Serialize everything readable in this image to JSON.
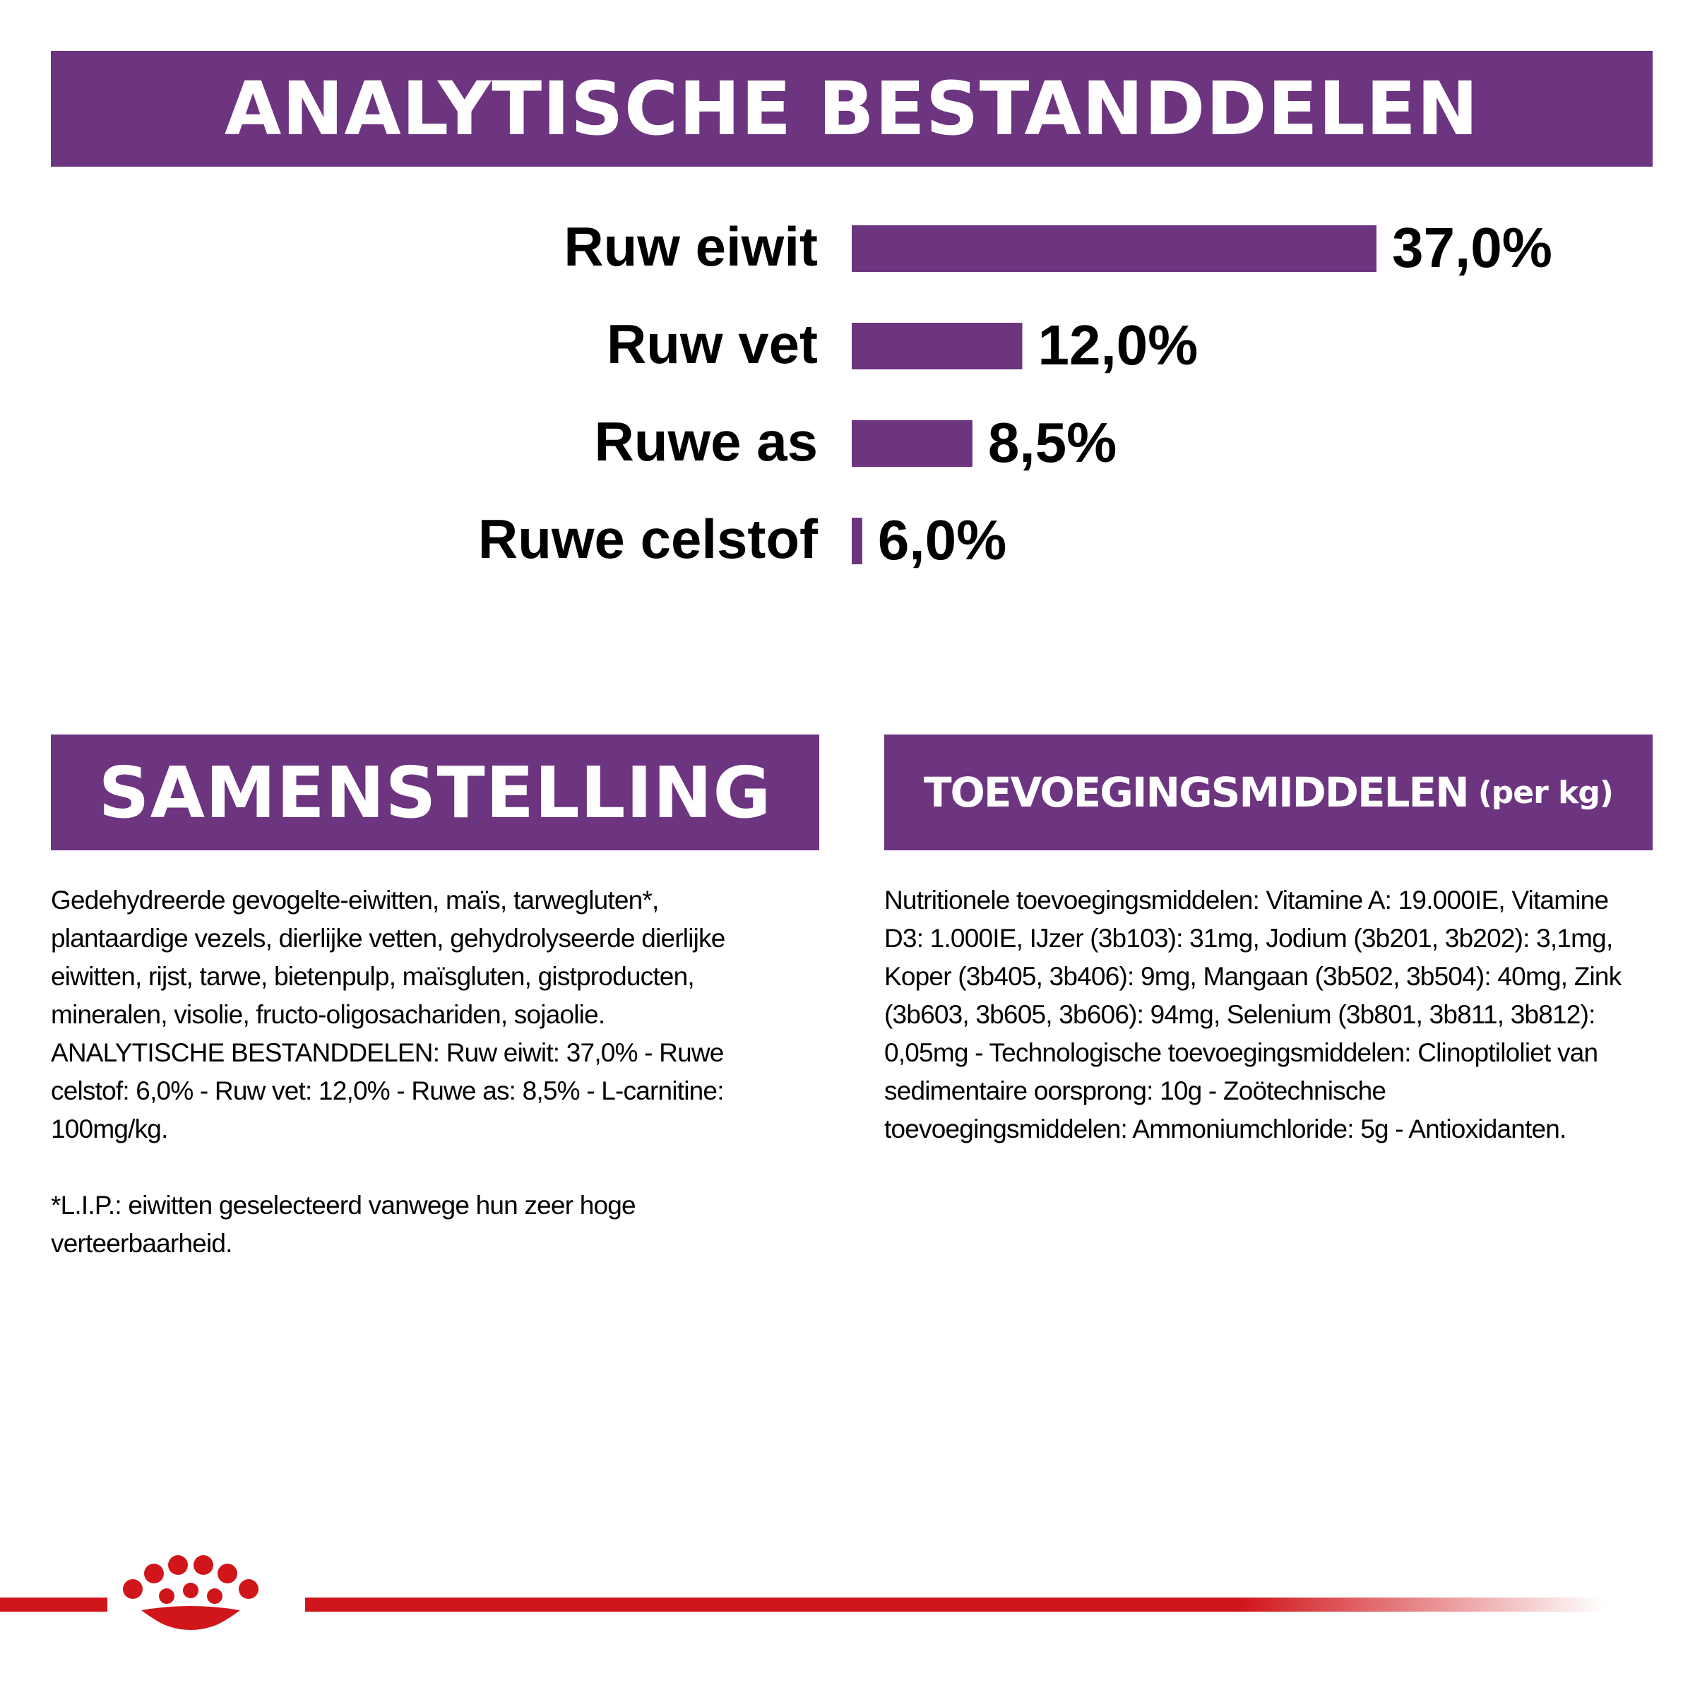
{
  "header": {
    "title": "ANALYTISCHE BESTANDDELEN"
  },
  "chart_data": {
    "type": "bar",
    "orientation": "horizontal",
    "categories": [
      "Ruw eiwit",
      "Ruw vet",
      "Ruwe as",
      "Ruwe celstof"
    ],
    "values": [
      37.0,
      12.0,
      8.5,
      6.0
    ],
    "data_labels": [
      "37,0%",
      "12,0%",
      "8,5%",
      "6,0%"
    ],
    "bar_scale": [
      1.0,
      0.325,
      0.23,
      0.02
    ],
    "color": "#6d3480",
    "grid": false,
    "legend": "none"
  },
  "composition": {
    "title": "SAMENSTELLING",
    "text": "Gedehydreerde gevogelte-eiwitten, maïs, tarwegluten*, plantaardige vezels, dierlijke vetten, gehydrolyseerde dierlijke eiwitten, rijst, tarwe, bietenpulp, maïsgluten, gistproducten, mineralen, visolie, fructo-oligosachariden, sojaolie.",
    "analytic": "ANALYTISCHE BESTANDDELEN: Ruw eiwit: 37,0% - Ruwe celstof: 6,0% - Ruw vet: 12,0% - Ruwe as: 8,5% - L-carnitine: 100mg/kg.",
    "footnote": "*L.I.P.: eiwitten geselecteerd vanwege hun zeer hoge verteerbaarheid."
  },
  "additives": {
    "title": "TOEVOEGINGSMIDDELEN",
    "subtitle": "(per kg)",
    "text": "Nutritionele toevoegingsmiddelen: Vitamine A: 19.000IE, Vitamine D3: 1.000IE, IJzer (3b103): 31mg, Jodium (3b201, 3b202): 3,1mg, Koper (3b405, 3b406): 9mg, Mangaan (3b502, 3b504): 40mg, Zink (3b603, 3b605, 3b606): 94mg, Selenium (3b801, 3b811, 3b812): 0,05mg - Technologische toevoegingsmiddelen: Clinoptiloliet van sedimentaire oorsprong: 10g - Zoötechnische toevoegingsmiddelen: Ammoniumchloride: 5g - Antioxidanten."
  },
  "footer": {
    "logo": "crown-logo-icon",
    "line_color": "#d0161b"
  }
}
